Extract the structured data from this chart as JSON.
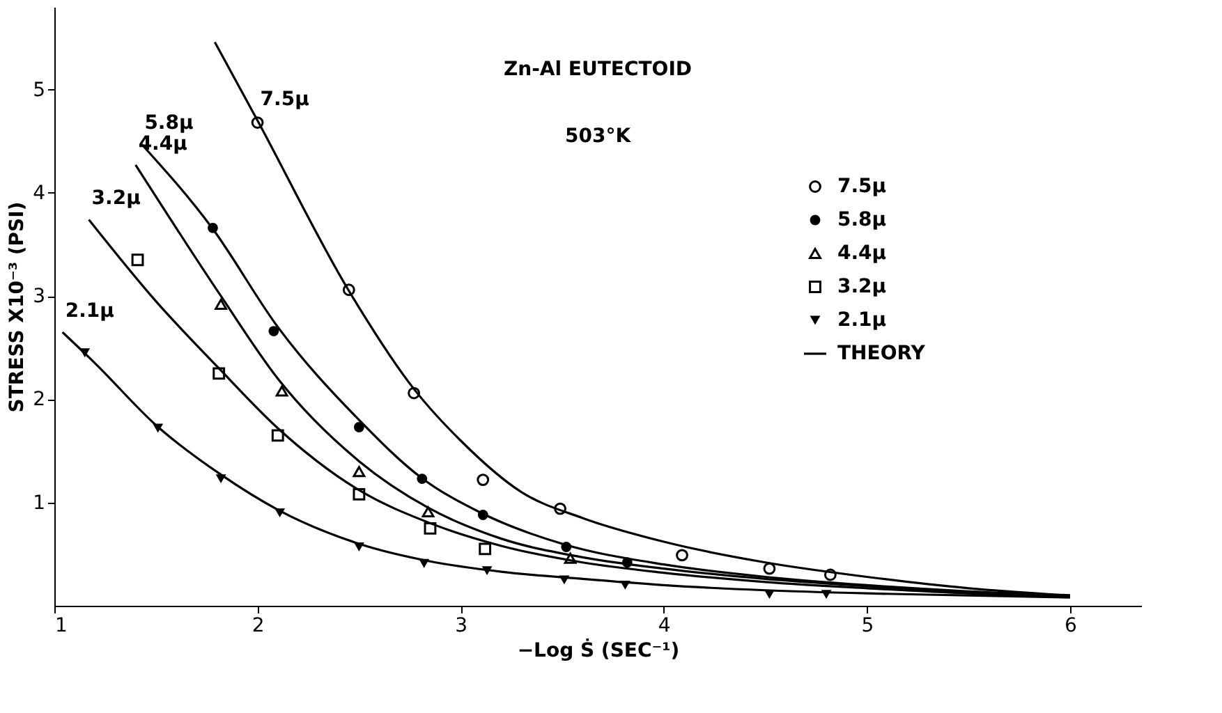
{
  "chart_data": {
    "type": "scatter",
    "xlabel": "−Log Ṡ (SEC⁻¹)",
    "ylabel": "STRESS X10⁻³ (PSI)",
    "xlim": [
      1,
      6.35
    ],
    "ylim": [
      0,
      5.8
    ],
    "xticks": [
      1,
      2,
      3,
      4,
      5,
      6
    ],
    "yticks": [
      1,
      2,
      3,
      4,
      5
    ],
    "grid": false,
    "legend": "right",
    "annotations": [
      "Zn-Al EUTECTOID",
      "503°K",
      {
        "text": "7.5μ",
        "x": 2.0,
        "y": 4.7
      },
      {
        "text": "5.8μ",
        "x": 1.43,
        "y": 4.47
      },
      {
        "text": "4.4μ",
        "x": 1.4,
        "y": 4.27
      },
      {
        "text": "3.2μ",
        "x": 1.17,
        "y": 3.74
      },
      {
        "text": "2.1μ",
        "x": 1.04,
        "y": 2.65
      }
    ],
    "series": [
      {
        "name": "7.5μ",
        "color": "#000000",
        "marker": "circle",
        "x": [
          2.0,
          2.45,
          2.77,
          3.11,
          3.49,
          4.09,
          4.52,
          4.82
        ],
        "values": [
          4.68,
          3.06,
          2.06,
          1.22,
          0.94,
          0.49,
          0.36,
          0.3
        ]
      },
      {
        "name": "5.8μ",
        "color": "#000000",
        "marker": "circle-filled",
        "x": [
          1.78,
          2.08,
          2.5,
          2.81,
          3.11,
          3.52,
          3.82
        ],
        "values": [
          3.66,
          2.66,
          1.73,
          1.23,
          0.88,
          0.57,
          0.42
        ]
      },
      {
        "name": "4.4μ",
        "color": "#000000",
        "marker": "triangle",
        "x": [
          1.82,
          2.12,
          2.5,
          2.84,
          3.54
        ],
        "values": [
          2.92,
          2.08,
          1.3,
          0.91,
          0.46
        ]
      },
      {
        "name": "3.2μ",
        "color": "#000000",
        "marker": "square",
        "x": [
          1.41,
          1.81,
          2.1,
          2.5,
          2.85,
          3.12
        ],
        "values": [
          3.35,
          2.25,
          1.65,
          1.08,
          0.75,
          0.55
        ]
      },
      {
        "name": "2.1μ",
        "color": "#000000",
        "marker": "triangle-down-filled",
        "x": [
          1.15,
          1.51,
          1.82,
          2.11,
          2.5,
          2.82,
          3.13,
          3.51,
          3.81,
          4.52,
          4.8
        ],
        "values": [
          2.45,
          1.72,
          1.23,
          0.9,
          0.57,
          0.41,
          0.34,
          0.25,
          0.2,
          0.11,
          0.11
        ]
      },
      {
        "name": "THEORY",
        "type": "line",
        "color": "#000000",
        "line_style": "solid",
        "x": [
          1.79,
          2.0,
          2.45,
          2.77,
          3.0,
          3.3,
          3.6,
          4.0,
          4.5,
          5.0,
          5.5,
          6.0
        ],
        "values": [
          5.46,
          4.7,
          3.05,
          2.1,
          1.6,
          1.1,
          0.85,
          0.62,
          0.42,
          0.28,
          0.17,
          0.1
        ]
      },
      {
        "type": "line",
        "color": "#000000",
        "line_style": "solid",
        "x": [
          1.43,
          1.78,
          2.1,
          2.5,
          2.8,
          3.1,
          3.5,
          4.0,
          4.5,
          5.0,
          5.5,
          6.0
        ],
        "values": [
          4.47,
          3.65,
          2.7,
          1.8,
          1.25,
          0.9,
          0.6,
          0.4,
          0.28,
          0.2,
          0.14,
          0.1
        ]
      },
      {
        "type": "line",
        "color": "#000000",
        "line_style": "solid",
        "x": [
          1.4,
          1.82,
          2.1,
          2.5,
          2.84,
          3.2,
          3.6,
          4.0,
          4.5,
          5.0,
          5.5,
          6.0
        ],
        "values": [
          4.27,
          3.0,
          2.2,
          1.4,
          0.95,
          0.65,
          0.47,
          0.36,
          0.26,
          0.19,
          0.13,
          0.09
        ]
      },
      {
        "type": "line",
        "color": "#000000",
        "line_style": "solid",
        "x": [
          1.17,
          1.5,
          1.81,
          2.1,
          2.5,
          2.85,
          3.2,
          3.6,
          4.0,
          4.5,
          5.0,
          5.5,
          6.0
        ],
        "values": [
          3.74,
          2.95,
          2.3,
          1.72,
          1.12,
          0.8,
          0.58,
          0.42,
          0.32,
          0.23,
          0.17,
          0.12,
          0.09
        ]
      },
      {
        "type": "line",
        "color": "#000000",
        "line_style": "solid",
        "x": [
          1.04,
          1.2,
          1.5,
          1.82,
          2.1,
          2.5,
          2.85,
          3.2,
          3.6,
          4.0,
          4.5,
          5.0,
          5.5,
          6.0
        ],
        "values": [
          2.65,
          2.35,
          1.75,
          1.27,
          0.93,
          0.6,
          0.43,
          0.33,
          0.26,
          0.2,
          0.15,
          0.12,
          0.1,
          0.08
        ]
      }
    ]
  }
}
